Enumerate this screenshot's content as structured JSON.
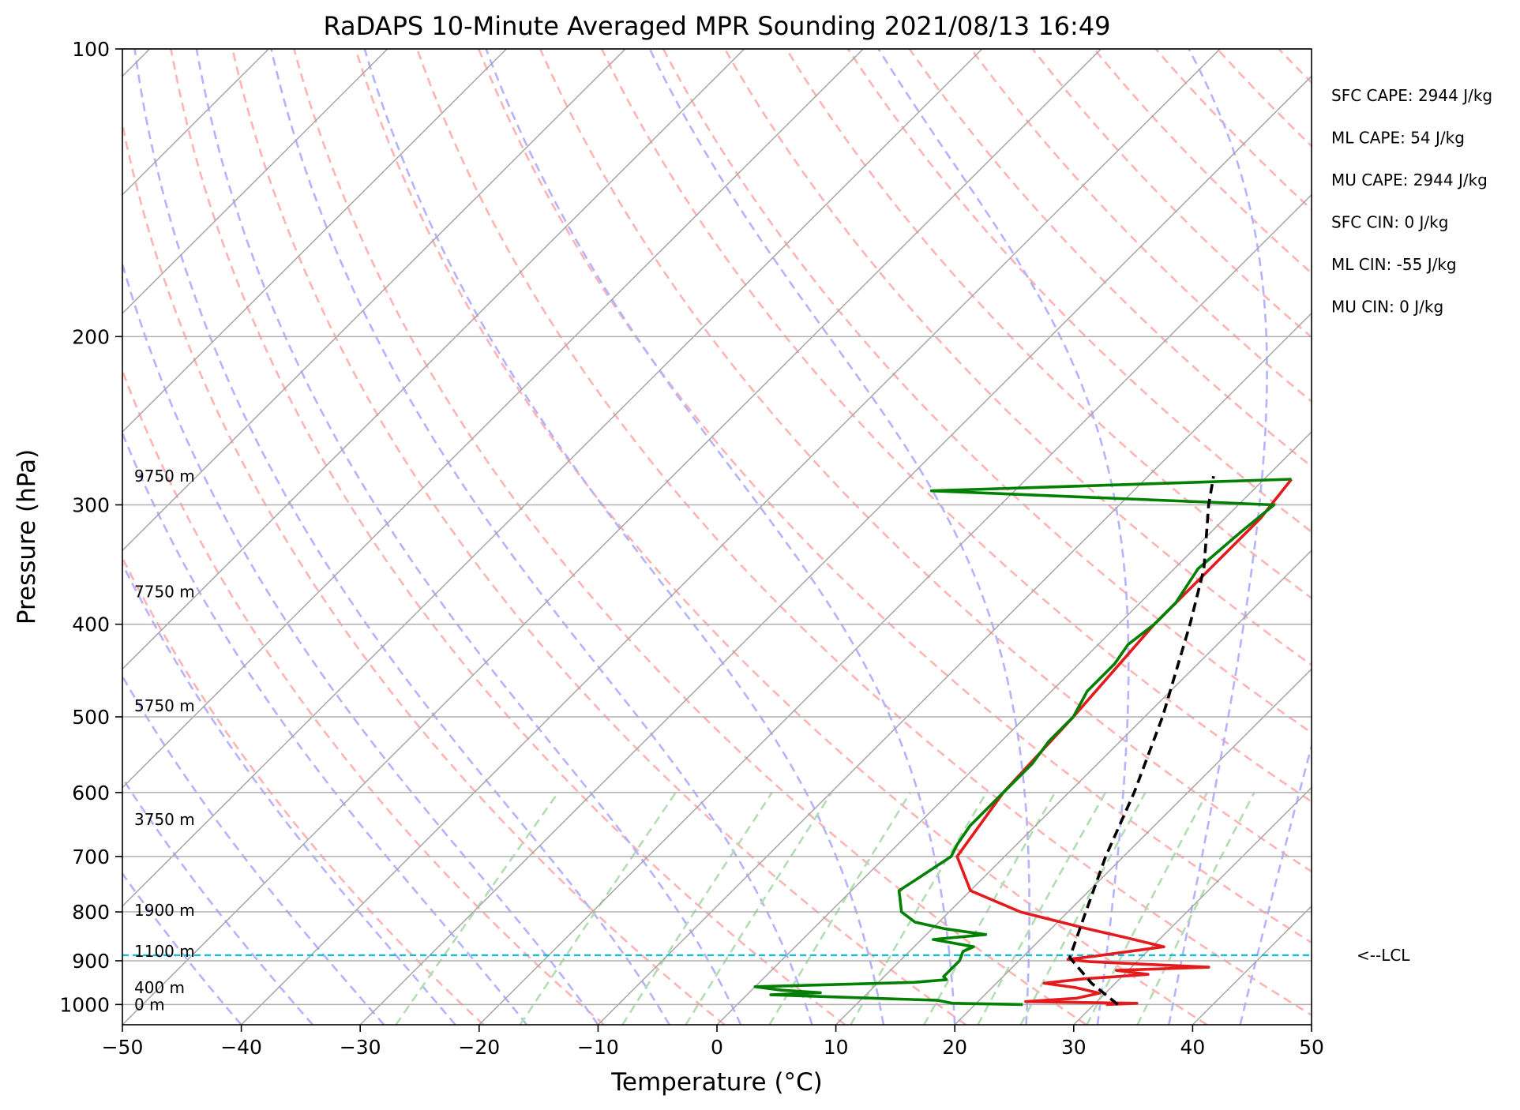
{
  "chart_data": {
    "type": "skew-t",
    "title": "RaDAPS 10-Minute Averaged MPR Sounding 2021/08/13 16:49",
    "xlabel": "Temperature (°C)",
    "ylabel": "Pressure (hPa)",
    "xlim": [
      -50,
      50
    ],
    "ylim": [
      1050,
      100
    ],
    "y_scale": "log",
    "x_ticks": [
      -50,
      -40,
      -30,
      -20,
      -10,
      0,
      10,
      20,
      30,
      40,
      50
    ],
    "x_tick_labels": [
      "−50",
      "−40",
      "−30",
      "−20",
      "−10",
      "0",
      "10",
      "20",
      "30",
      "40",
      "50"
    ],
    "y_ticks": [
      100,
      200,
      300,
      400,
      500,
      600,
      700,
      800,
      900,
      1000
    ],
    "y_tick_labels": [
      "100",
      "200",
      "300",
      "400",
      "500",
      "600",
      "700",
      "800",
      "900",
      "1000"
    ],
    "grid": true,
    "reference_lines": {
      "isotherms_color": "#a6a6a6",
      "dry_adiabats_color": "#ffb3b3",
      "moist_adiabats_color": "#b3b3ff",
      "mixing_ratio_color": "#b3dcb3"
    },
    "series": [
      {
        "color": "#e41a1c",
        "points": [
          [
            1000,
            31
          ],
          [
            997,
            33.5
          ],
          [
            993,
            24
          ],
          [
            985,
            28
          ],
          [
            973,
            29.5
          ],
          [
            960,
            27
          ],
          [
            950,
            24
          ],
          [
            940,
            27
          ],
          [
            930,
            32
          ],
          [
            921,
            29
          ],
          [
            914,
            36.5
          ],
          [
            902,
            26
          ],
          [
            897,
            24
          ],
          [
            890,
            26
          ],
          [
            870,
            31
          ],
          [
            851,
            27
          ],
          [
            833,
            23
          ],
          [
            800,
            16
          ],
          [
            760,
            10
          ],
          [
            700,
            6
          ],
          [
            600,
            4.5
          ],
          [
            500,
            4
          ],
          [
            400,
            3
          ],
          [
            350,
            3
          ],
          [
            310,
            3
          ],
          [
            290,
            2.5
          ],
          [
            282,
            2.3
          ]
        ]
      },
      {
        "color": "#008000",
        "points": [
          [
            1000,
            24
          ],
          [
            997,
            18
          ],
          [
            990,
            16.5
          ],
          [
            977,
            2
          ],
          [
            972,
            6
          ],
          [
            966,
            2.5
          ],
          [
            958,
            0
          ],
          [
            948,
            13
          ],
          [
            942,
            15.5
          ],
          [
            935,
            15
          ],
          [
            925,
            15
          ],
          [
            915,
            15
          ],
          [
            900,
            15
          ],
          [
            880,
            14.5
          ],
          [
            870,
            15
          ],
          [
            855,
            11
          ],
          [
            845,
            15
          ],
          [
            833,
            11
          ],
          [
            820,
            8
          ],
          [
            800,
            6
          ],
          [
            760,
            4
          ],
          [
            740,
            4.5
          ],
          [
            700,
            5.5
          ],
          [
            680,
            5
          ],
          [
            650,
            4.5
          ],
          [
            600,
            4.5
          ],
          [
            560,
            4.5
          ],
          [
            530,
            4
          ],
          [
            500,
            4
          ],
          [
            470,
            3
          ],
          [
            440,
            3
          ],
          [
            420,
            2.5
          ],
          [
            400,
            3
          ],
          [
            380,
            3
          ],
          [
            350,
            2
          ],
          [
            320,
            2.5
          ],
          [
            300,
            3
          ],
          [
            290,
            -27
          ],
          [
            282,
            2.3
          ]
        ]
      },
      {
        "color": "#000000",
        "dashed": true,
        "points": [
          [
            1000,
            32
          ],
          [
            950,
            28
          ],
          [
            893,
            24
          ],
          [
            800,
            21.5
          ],
          [
            700,
            18.5
          ],
          [
            600,
            15.5
          ],
          [
            500,
            11.5
          ],
          [
            400,
            6
          ],
          [
            350,
            2.5
          ],
          [
            300,
            -2.5
          ],
          [
            280,
            -4.5
          ]
        ]
      }
    ],
    "lcl": {
      "pressure": 888,
      "label": "<--LCL",
      "color": "#17becf"
    },
    "height_labels": [
      {
        "text": "0 m",
        "pressure": 1000
      },
      {
        "text": "400 m",
        "pressure": 960
      },
      {
        "text": "1100 m",
        "pressure": 880
      },
      {
        "text": "1900 m",
        "pressure": 797
      },
      {
        "text": "3750 m",
        "pressure": 640
      },
      {
        "text": "5750 m",
        "pressure": 487
      },
      {
        "text": "7750 m",
        "pressure": 370
      },
      {
        "text": "9750 m",
        "pressure": 280
      }
    ],
    "annotations": [
      "SFC CAPE: 2944 J/kg",
      "ML CAPE: 54 J/kg",
      "MU CAPE: 2944 J/kg",
      "SFC CIN: 0 J/kg",
      "ML CIN: -55 J/kg",
      "MU CIN: 0 J/kg"
    ]
  }
}
